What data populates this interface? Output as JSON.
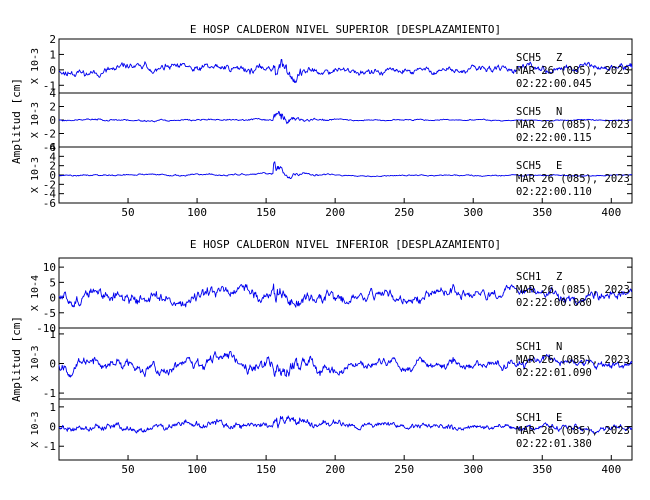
{
  "chart_data": [
    {
      "type": "line",
      "title": "E HOSP CALDERON NIVEL SUPERIOR [DESPLAZAMIENTO]",
      "ylabel": "Amplitud [cm]",
      "xlim": [
        0,
        415
      ],
      "x_ticks": [
        "50",
        "100",
        "150",
        "200",
        "250",
        "300",
        "350",
        "400"
      ],
      "panels": [
        {
          "station": "SCH5",
          "component": "Z",
          "date": "MAR 26 (085), 2023",
          "time": "02:22:00.045",
          "scale": "X 10-3",
          "ylim": [
            -1.5,
            2
          ],
          "y_ticks": [
            "2",
            "1",
            "0",
            "-1"
          ],
          "peak": 2.0,
          "bg_amp": 0.6,
          "quiet_amp": 0.5,
          "seed": 11
        },
        {
          "station": "SCH5",
          "component": "N",
          "date": "MAR 26 (085), 2023",
          "time": "02:22:00.115",
          "scale": "X 10-3",
          "ylim": [
            -4,
            4
          ],
          "y_ticks": [
            "4",
            "2",
            "0",
            "-2",
            "-4"
          ],
          "peak": 3.8,
          "bg_amp": 0.3,
          "quiet_amp": 0.2,
          "seed": 23
        },
        {
          "station": "SCH5",
          "component": "E",
          "date": "MAR 26 (085), 2023",
          "time": "02:22:00.110",
          "scale": "X 10-3",
          "ylim": [
            -6,
            6
          ],
          "y_ticks": [
            "6",
            "4",
            "2",
            "0",
            "-2",
            "-4",
            "-6"
          ],
          "peak": 4.5,
          "bg_amp": 0.4,
          "quiet_amp": 0.3,
          "seed": 37
        }
      ]
    },
    {
      "type": "line",
      "title": "E HOSP CALDERON NIVEL INFERIOR [DESPLAZAMIENTO]",
      "ylabel": "Amplitud [cm]",
      "xlim": [
        0,
        415
      ],
      "x_ticks": [
        "50",
        "100",
        "150",
        "200",
        "250",
        "300",
        "350",
        "400"
      ],
      "panels": [
        {
          "station": "SCH1",
          "component": "Z",
          "date": "MAR 26 (085), 2023",
          "time": "02:22:00.080",
          "scale": "X 10-4",
          "ylim": [
            -10,
            13
          ],
          "y_ticks": [
            "10",
            "5",
            "0",
            "-5",
            "-10"
          ],
          "peak": 12,
          "bg_amp": 4.5,
          "quiet_amp": 4.0,
          "seed": 51
        },
        {
          "station": "SCH1",
          "component": "N",
          "date": "MAR 26 (085), 2023",
          "time": "02:22:01.090",
          "scale": "X 10-3",
          "ylim": [
            -1.2,
            1.2
          ],
          "y_ticks": [
            "1",
            "0",
            "-1"
          ],
          "peak": 1.1,
          "bg_amp": 0.45,
          "quiet_amp": 0.35,
          "seed": 67
        },
        {
          "station": "SCH1",
          "component": "E",
          "date": "MAR 26 (085), 2023",
          "time": "02:22:01.380",
          "scale": "X 10-3",
          "ylim": [
            -1.7,
            1.4
          ],
          "y_ticks": [
            "1",
            "0",
            "-1"
          ],
          "peak": 1.2,
          "bg_amp": 0.45,
          "quiet_amp": 0.35,
          "seed": 79
        }
      ]
    }
  ]
}
